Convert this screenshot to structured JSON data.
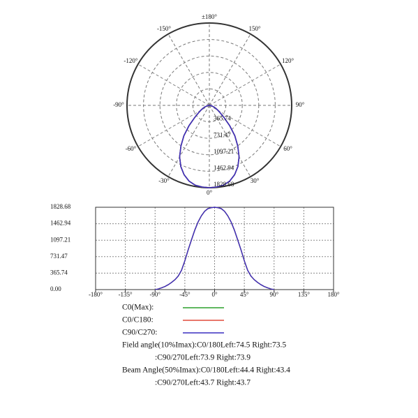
{
  "chart_data": [
    {
      "type": "polar",
      "theta": [
        -90,
        -85,
        -80,
        -75,
        -70,
        -65,
        -60,
        -55,
        -50,
        -45,
        -40,
        -35,
        -30,
        -25,
        -20,
        -15,
        -10,
        -5,
        0,
        5,
        10,
        15,
        20,
        25,
        30,
        35,
        40,
        45,
        50,
        55,
        60,
        65,
        70,
        75,
        80,
        85,
        90
      ],
      "series": [
        {
          "name": "C0(Max):",
          "color": "#2ca02c",
          "values": [
            0,
            15,
            40,
            70,
            110,
            160,
            220,
            300,
            430,
            640,
            880,
            1100,
            1320,
            1500,
            1640,
            1740,
            1800,
            1820,
            1828.68,
            1820,
            1800,
            1740,
            1640,
            1500,
            1320,
            1100,
            880,
            640,
            430,
            300,
            220,
            160,
            110,
            70,
            40,
            15,
            0
          ]
        },
        {
          "name": "C0/C180:",
          "color": "#e04a3a",
          "values": [
            0,
            15,
            40,
            70,
            110,
            160,
            220,
            300,
            430,
            640,
            880,
            1100,
            1320,
            1500,
            1640,
            1740,
            1800,
            1820,
            1828.68,
            1820,
            1800,
            1740,
            1640,
            1500,
            1320,
            1100,
            880,
            640,
            430,
            300,
            220,
            160,
            110,
            70,
            40,
            15,
            0
          ]
        },
        {
          "name": "C90/C270:",
          "color": "#3a2fc0",
          "values": [
            0,
            15,
            40,
            70,
            110,
            160,
            220,
            300,
            430,
            640,
            880,
            1100,
            1320,
            1500,
            1640,
            1740,
            1800,
            1820,
            1828.68,
            1820,
            1800,
            1740,
            1640,
            1500,
            1320,
            1100,
            880,
            640,
            430,
            300,
            220,
            160,
            110,
            70,
            40,
            15,
            0
          ]
        }
      ],
      "rlim": [
        0,
        1828.68
      ],
      "rticks": [
        365.74,
        731.47,
        1097.21,
        1462.94,
        1828.68
      ],
      "thetaticks": [
        {
          "value": 180,
          "label": "±180°"
        },
        {
          "value": 150,
          "label": "150°"
        },
        {
          "value": 120,
          "label": "120°"
        },
        {
          "value": 90,
          "label": "90°"
        },
        {
          "value": 60,
          "label": "60°"
        },
        {
          "value": 30,
          "label": "30°"
        },
        {
          "value": 0,
          "label": "0°"
        },
        {
          "value": -30,
          "label": "-30°"
        },
        {
          "value": -60,
          "label": "-60°"
        },
        {
          "value": -90,
          "label": "-90°"
        },
        {
          "value": -120,
          "label": "-120°"
        },
        {
          "value": -150,
          "label": "-150°"
        }
      ]
    },
    {
      "type": "line",
      "x": [
        -90,
        -85,
        -80,
        -75,
        -70,
        -65,
        -60,
        -55,
        -50,
        -45,
        -40,
        -35,
        -30,
        -25,
        -20,
        -15,
        -10,
        -5,
        0,
        5,
        10,
        15,
        20,
        25,
        30,
        35,
        40,
        45,
        50,
        55,
        60,
        65,
        70,
        75,
        80,
        85,
        90
      ],
      "series": [
        {
          "name": "C0(Max):",
          "color": "#2ca02c",
          "values": [
            0,
            15,
            40,
            70,
            110,
            160,
            220,
            300,
            430,
            640,
            880,
            1100,
            1320,
            1500,
            1640,
            1740,
            1800,
            1820,
            1828.68,
            1820,
            1800,
            1740,
            1640,
            1500,
            1320,
            1100,
            880,
            640,
            430,
            300,
            220,
            160,
            110,
            70,
            40,
            15,
            0
          ]
        },
        {
          "name": "C0/C180:",
          "color": "#e04a3a",
          "values": [
            0,
            15,
            40,
            70,
            110,
            160,
            220,
            300,
            430,
            640,
            880,
            1100,
            1320,
            1500,
            1640,
            1740,
            1800,
            1820,
            1828.68,
            1820,
            1800,
            1740,
            1640,
            1500,
            1320,
            1100,
            880,
            640,
            430,
            300,
            220,
            160,
            110,
            70,
            40,
            15,
            0
          ]
        },
        {
          "name": "C90/C270:",
          "color": "#3a2fc0",
          "values": [
            0,
            15,
            40,
            70,
            110,
            160,
            220,
            300,
            430,
            640,
            880,
            1100,
            1320,
            1500,
            1640,
            1740,
            1800,
            1820,
            1828.68,
            1820,
            1800,
            1740,
            1640,
            1500,
            1320,
            1100,
            880,
            640,
            430,
            300,
            220,
            160,
            110,
            70,
            40,
            15,
            0
          ]
        }
      ],
      "xlim": [
        -180,
        180
      ],
      "xticks": [
        {
          "value": -180,
          "label": "-180°"
        },
        {
          "value": -135,
          "label": "-135°"
        },
        {
          "value": -90,
          "label": "-90°"
        },
        {
          "value": -45,
          "label": "-45°"
        },
        {
          "value": 0,
          "label": "0°"
        },
        {
          "value": 45,
          "label": "45°"
        },
        {
          "value": 90,
          "label": "90°"
        },
        {
          "value": 135,
          "label": "135°"
        },
        {
          "value": 180,
          "label": "180°"
        }
      ],
      "ylim": [
        0,
        1828.68
      ],
      "yticks": [
        {
          "value": 0,
          "label": "0.00"
        },
        365.74,
        731.47,
        1097.21,
        1462.94,
        1828.68
      ],
      "grid": true,
      "annotations": [
        "Field angle(10%Imax):C0/180Left:74.5 Right:73.5",
        ":C90/270Left:73.9 Right:73.9",
        "Beam Angle(50%Imax):C0/180Left:44.4 Right:43.4",
        ":C90/270Left:43.7 Right:43.7"
      ]
    }
  ]
}
